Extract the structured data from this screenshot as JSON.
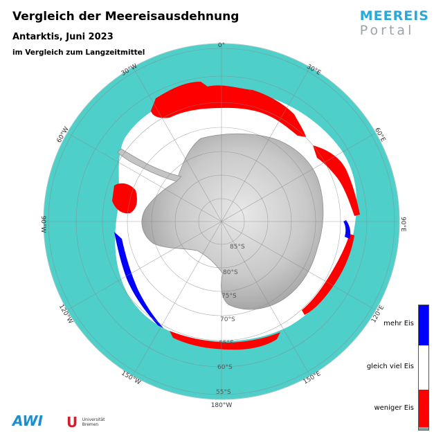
{
  "header": {
    "title": "Vergleich der Meereisausdehnung",
    "subtitle": "Antarktis, Juni 2023",
    "subtitle2": "im Vergleich zum Langzeitmittel"
  },
  "logo": {
    "line1": "MEEREIS",
    "line2": "Portal"
  },
  "map": {
    "longitude_labels": [
      "0°",
      "30°E",
      "60°E",
      "90°E",
      "120°E",
      "150°E",
      "180°W",
      "150°W",
      "120°W",
      "90°W",
      "60°W",
      "30°W"
    ],
    "latitude_labels": [
      "85°S",
      "80°S",
      "75°S",
      "70°S",
      "65°S",
      "60°S",
      "55°S"
    ],
    "colors": {
      "ocean": "#4ecfc9",
      "ice": "#ffffff",
      "more_ice": "#0000ff",
      "less_ice": "#ff0000",
      "land": "#bdbdbd"
    }
  },
  "legend": {
    "more": "mehr Eis",
    "same": "gleich viel Eis",
    "less": "weniger Eis",
    "colors": {
      "more": "#0000ff",
      "same": "#ffffff",
      "less": "#ff0000"
    }
  },
  "footer": {
    "awi": "AWI",
    "uni_mark": "U",
    "uni_line1": "Universität",
    "uni_line2": "Bremen"
  }
}
